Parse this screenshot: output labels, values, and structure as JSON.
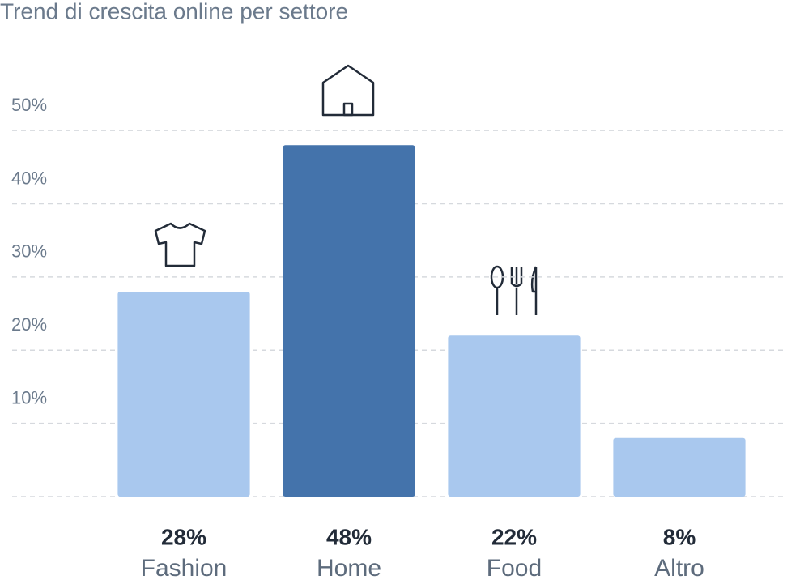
{
  "chart_data": {
    "type": "bar",
    "title": "Trend di crescita online per settore",
    "categories": [
      "Fashion",
      "Home",
      "Food",
      "Altro"
    ],
    "values": [
      28,
      48,
      22,
      8
    ],
    "value_labels": [
      "28%",
      "48%",
      "22%",
      "8%"
    ],
    "colors": [
      "#a9c8ee",
      "#4473ab",
      "#a9c8ee",
      "#a9c8ee"
    ],
    "ylim": [
      0,
      55
    ],
    "yticks": [
      {
        "value": 10,
        "label": "10%"
      },
      {
        "value": 20,
        "label": "20%"
      },
      {
        "value": 30,
        "label": "30%"
      },
      {
        "value": 40,
        "label": "40%"
      },
      {
        "value": 50,
        "label": "50%"
      }
    ],
    "grid": true
  }
}
